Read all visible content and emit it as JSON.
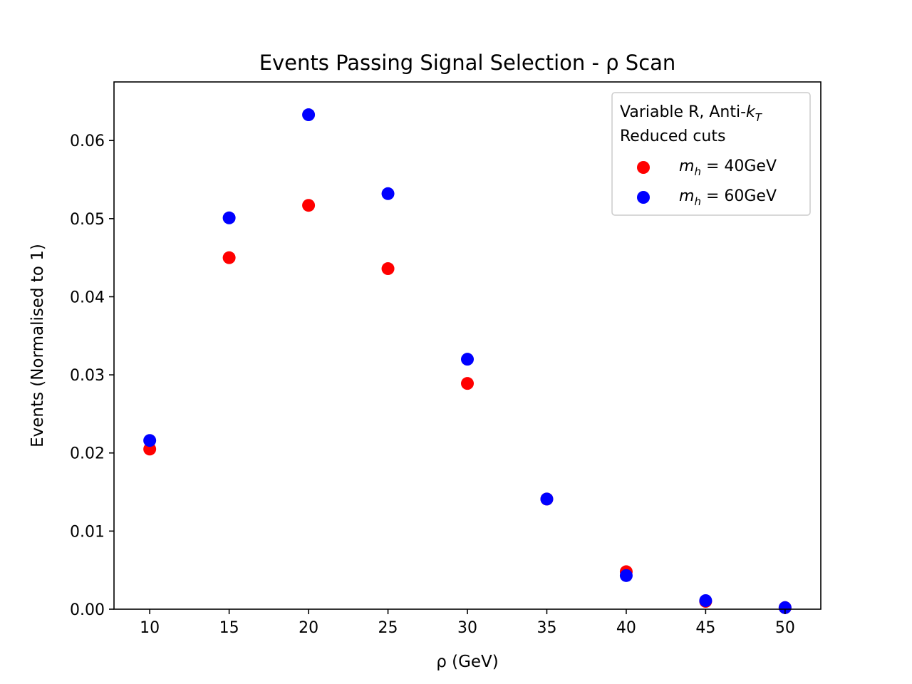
{
  "chart_data": {
    "type": "scatter",
    "title": "Events Passing Signal Selection - ρ Scan",
    "xlabel": "ρ (GeV)",
    "ylabel": "Events (Normalised to 1)",
    "xlim": [
      7.75,
      52.25
    ],
    "ylim": [
      0.0,
      0.0675
    ],
    "xticks": [
      10,
      15,
      20,
      25,
      30,
      35,
      40,
      45,
      50
    ],
    "yticks": [
      0.0,
      0.01,
      0.02,
      0.03,
      0.04,
      0.05,
      0.06
    ],
    "ytick_labels": [
      "0.00",
      "0.01",
      "0.02",
      "0.03",
      "0.04",
      "0.05",
      "0.06"
    ],
    "grid": false,
    "legend": {
      "placement": "top-right",
      "title_line1": "Variable R, Anti-",
      "title_k": "k",
      "title_sub": "T",
      "title_line2": "Reduced cuts"
    },
    "series": [
      {
        "name": "m_h = 40GeV",
        "label_m": "m",
        "label_sub": "h",
        "label_rest": " = 40GeV",
        "color": "#ff0000",
        "x": [
          10,
          15,
          20,
          25,
          30,
          35,
          40,
          45,
          50
        ],
        "y": [
          0.0205,
          0.045,
          0.0517,
          0.0436,
          0.0289,
          0.0141,
          0.0048,
          0.001,
          0.0002
        ]
      },
      {
        "name": "m_h = 60GeV",
        "label_m": "m",
        "label_sub": "h",
        "label_rest": " = 60GeV",
        "color": "#0000ff",
        "x": [
          10,
          15,
          20,
          25,
          30,
          35,
          40,
          45,
          50
        ],
        "y": [
          0.0216,
          0.0501,
          0.0633,
          0.0532,
          0.032,
          0.0141,
          0.0043,
          0.0011,
          0.0002
        ]
      }
    ]
  }
}
